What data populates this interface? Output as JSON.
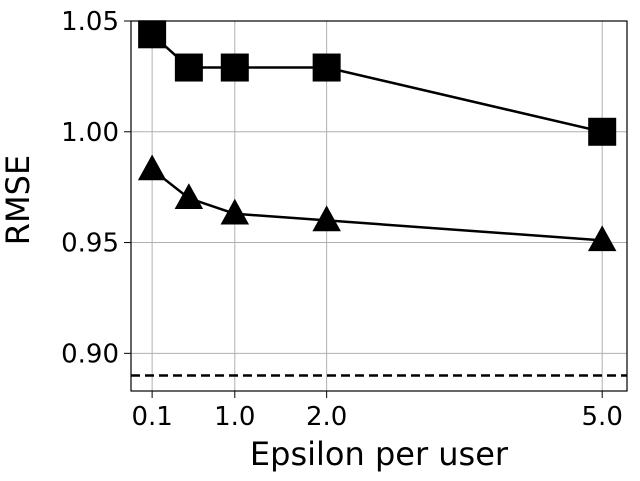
{
  "chart_data": {
    "type": "line",
    "xlabel": "Epsilon per user",
    "ylabel": "RMSE",
    "xlim": [
      -0.13,
      5.27
    ],
    "ylim": [
      0.883,
      1.05
    ],
    "x_ticks": [
      {
        "value": 0.1,
        "label": "0.1"
      },
      {
        "value": 1.0,
        "label": "1.0"
      },
      {
        "value": 2.0,
        "label": "2.0"
      },
      {
        "value": 5.0,
        "label": "5.0"
      }
    ],
    "y_ticks": [
      {
        "value": 0.9,
        "label": "0.90"
      },
      {
        "value": 0.95,
        "label": "0.95"
      },
      {
        "value": 1.0,
        "label": "1.00"
      },
      {
        "value": 1.05,
        "label": "1.05"
      }
    ],
    "grid": true,
    "series": [
      {
        "marker": "square",
        "color": "#000000",
        "x": [
          0.1,
          0.5,
          1.0,
          2.0,
          5.0
        ],
        "y": [
          1.044,
          1.029,
          1.029,
          1.029,
          1.0
        ]
      },
      {
        "marker": "triangle",
        "color": "#000000",
        "x": [
          0.1,
          0.5,
          1.0,
          2.0,
          5.0
        ],
        "y": [
          0.983,
          0.97,
          0.963,
          0.96,
          0.951
        ]
      }
    ],
    "reference_lines": [
      {
        "orientation": "horizontal",
        "y": 0.89,
        "style": "dashed",
        "color": "#000000"
      }
    ]
  }
}
